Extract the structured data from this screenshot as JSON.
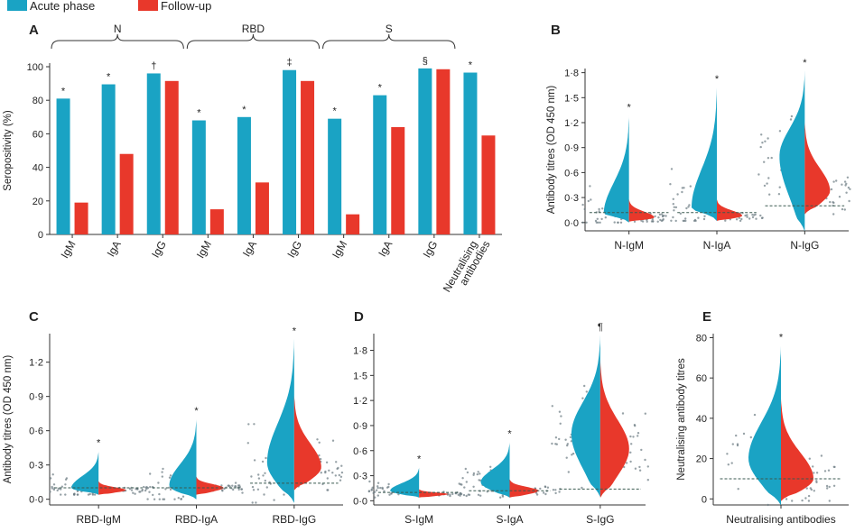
{
  "legend": {
    "items": [
      {
        "label": "Acute phase",
        "color": "#1aa3c4"
      },
      {
        "label": "Follow-up",
        "color": "#e8382b"
      }
    ],
    "placement": "top-left"
  },
  "chart_data": [
    {
      "panel": "A",
      "type": "bar",
      "ylabel": "Seropositivity (%)",
      "ylim": [
        0,
        100
      ],
      "yticks": [
        0,
        20,
        40,
        60,
        80,
        100
      ],
      "groups": [
        {
          "label": "N",
          "categories": [
            0,
            1,
            2
          ]
        },
        {
          "label": "RBD",
          "categories": [
            3,
            4,
            5
          ]
        },
        {
          "label": "S",
          "categories": [
            6,
            7,
            8
          ]
        }
      ],
      "categories": [
        "IgM",
        "IgA",
        "IgG",
        "IgM",
        "IgA",
        "IgG",
        "IgM",
        "IgA",
        "IgG",
        "Neutralising antibodies"
      ],
      "series": [
        {
          "name": "Acute phase",
          "color": "#1aa3c4",
          "values": [
            81,
            89.5,
            96,
            68,
            70,
            98,
            69,
            83,
            99,
            96.5
          ]
        },
        {
          "name": "Follow-up",
          "color": "#e8382b",
          "values": [
            19,
            48,
            91.5,
            15,
            31,
            91.5,
            12,
            64,
            98.5,
            59
          ]
        }
      ],
      "annotations": [
        "*",
        "*",
        "†",
        "*",
        "*",
        "‡",
        "*",
        "*",
        "§",
        "*"
      ]
    },
    {
      "panel": "B",
      "type": "violin",
      "ylabel": "Antibody titres (OD 450 nm)",
      "ylim": [
        -0.1,
        1.85
      ],
      "yticks": [
        "0·0",
        "0·3",
        "0·6",
        "0·9",
        "1·2",
        "1·5",
        "1·8"
      ],
      "ytick_values": [
        0,
        0.3,
        0.6,
        0.9,
        1.2,
        1.5,
        1.8
      ],
      "categories": [
        "N-IgM",
        "N-IgA",
        "N-IgG"
      ],
      "acute": [
        {
          "peak": 0.1,
          "max": 1.28,
          "min": 0.0
        },
        {
          "peak": 0.18,
          "max": 1.62,
          "min": 0.02
        },
        {
          "peak": 0.8,
          "max": 1.82,
          "min": -0.1
        }
      ],
      "follow_up": [
        {
          "peak": 0.06,
          "max": 0.28,
          "min": 0.01
        },
        {
          "peak": 0.08,
          "max": 0.28,
          "min": 0.02
        },
        {
          "peak": 0.38,
          "max": 1.22,
          "min": 0.1
        }
      ],
      "cutoffs": [
        0.12,
        0.12,
        0.2
      ],
      "annotations": [
        "*",
        "*",
        "*"
      ]
    },
    {
      "panel": "C",
      "type": "violin",
      "ylabel": "Antibody titres (OD 450 nm)",
      "ylim": [
        -0.05,
        1.45
      ],
      "yticks": [
        "0·0",
        "0·3",
        "0·6",
        "0·9",
        "1·2"
      ],
      "ytick_values": [
        0,
        0.3,
        0.6,
        0.9,
        1.2
      ],
      "categories": [
        "RBD-IgM",
        "RBD-IgA",
        "RBD-IgG"
      ],
      "acute": [
        {
          "peak": 0.1,
          "max": 0.42,
          "min": 0.04
        },
        {
          "peak": 0.12,
          "max": 0.7,
          "min": 0.0
        },
        {
          "peak": 0.32,
          "max": 1.4,
          "min": -0.03
        }
      ],
      "follow_up": [
        {
          "peak": 0.08,
          "max": 0.16,
          "min": 0.04
        },
        {
          "peak": 0.1,
          "max": 0.2,
          "min": 0.04
        },
        {
          "peak": 0.28,
          "max": 0.92,
          "min": 0.08
        }
      ],
      "cutoffs": [
        0.1,
        0.1,
        0.14
      ],
      "annotations": [
        "*",
        "*",
        "*"
      ]
    },
    {
      "panel": "D",
      "type": "violin",
      "ylabel": "",
      "ylim": [
        -0.05,
        2.0
      ],
      "yticks": [
        "0·0",
        "0·3",
        "0·6",
        "0·9",
        "1·2",
        "1·5",
        "1·8"
      ],
      "ytick_values": [
        0,
        0.3,
        0.6,
        0.9,
        1.2,
        1.5,
        1.8
      ],
      "categories": [
        "S-IgM",
        "S-IgA",
        "S-IgG"
      ],
      "acute": [
        {
          "peak": 0.12,
          "max": 0.4,
          "min": 0.04
        },
        {
          "peak": 0.22,
          "max": 0.7,
          "min": 0.04
        },
        {
          "peak": 0.8,
          "max": 1.98,
          "min": 0.05
        }
      ],
      "follow_up": [
        {
          "peak": 0.08,
          "max": 0.14,
          "min": 0.04
        },
        {
          "peak": 0.12,
          "max": 0.26,
          "min": 0.04
        },
        {
          "peak": 0.62,
          "max": 1.7,
          "min": 0.04
        }
      ],
      "cutoffs": [
        0.1,
        0.12,
        0.14
      ],
      "annotations": [
        "*",
        "*",
        "¶"
      ]
    },
    {
      "panel": "E",
      "type": "violin",
      "ylabel": "Neutralising antibody titres",
      "ylim": [
        -3,
        82
      ],
      "yticks": [
        "0",
        "20",
        "40",
        "60",
        "80"
      ],
      "ytick_values": [
        0,
        20,
        40,
        60,
        80
      ],
      "categories": [
        "Neutralising antibodies"
      ],
      "acute": [
        {
          "peak": 20,
          "max": 76,
          "min": -3
        }
      ],
      "follow_up": [
        {
          "peak": 10,
          "max": 50,
          "min": -1
        }
      ],
      "cutoffs": [
        10
      ],
      "annotations": [
        "*"
      ]
    }
  ]
}
